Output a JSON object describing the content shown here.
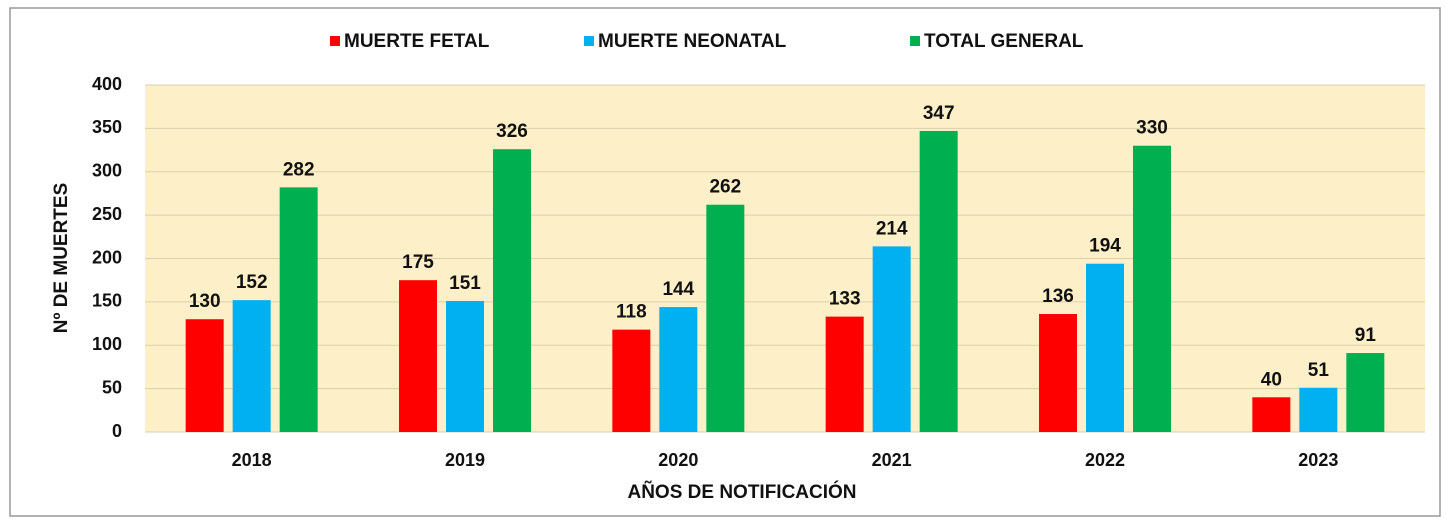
{
  "chart_data": {
    "type": "bar",
    "categories": [
      "2018",
      "2019",
      "2020",
      "2021",
      "2022",
      "2023"
    ],
    "series": [
      {
        "name": "MUERTE FETAL",
        "color": "#ff0000",
        "values": [
          130,
          175,
          118,
          133,
          136,
          40
        ]
      },
      {
        "name": "MUERTE NEONATAL",
        "color": "#00b0f0",
        "values": [
          152,
          151,
          144,
          214,
          194,
          51
        ]
      },
      {
        "name": "TOTAL GENERAL",
        "color": "#00b050",
        "values": [
          282,
          326,
          262,
          347,
          330,
          91
        ]
      }
    ],
    "ylabel": "Nº DE MUERTES",
    "xlabel": "AÑOS DE NOTIFICACIÓN",
    "ylim": [
      0,
      400
    ],
    "yticks": [
      0,
      50,
      100,
      150,
      200,
      250,
      300,
      350,
      400
    ],
    "grid": true,
    "legend": "top"
  }
}
